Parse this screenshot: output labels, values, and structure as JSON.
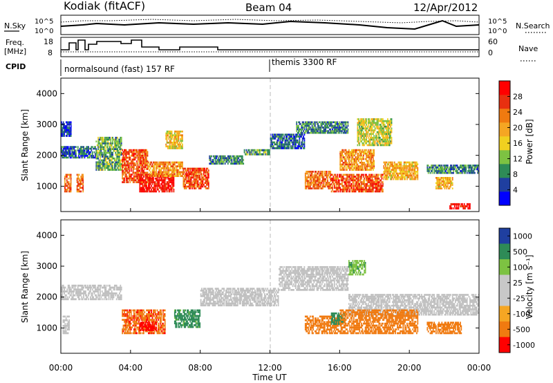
{
  "header": {
    "station": "Kodiak (fitACF)",
    "beam": "Beam 04",
    "date": "12/Apr/2012"
  },
  "strips": {
    "nsky_label": "N.Sky",
    "nsearch_label": "N.Search",
    "noise_ticks": [
      "10^5",
      "10^0"
    ],
    "freq_label": "Freq.",
    "freq_unit": "[MHz]",
    "freq_ticks": [
      "18",
      "8"
    ],
    "nave_label": "Nave",
    "nave_ticks": [
      "60",
      "0"
    ],
    "cpid_label": "CPID",
    "cpid_segments": [
      {
        "label": "normalsound (fast) 157 RF",
        "start": "00:00"
      },
      {
        "label": "themis 3300 RF",
        "start": "12:00"
      }
    ]
  },
  "colors": {
    "power_scale": [
      "#0000ff",
      "#1f3fa0",
      "#2e8b57",
      "#7dc242",
      "#f0d020",
      "#f5a623",
      "#f07a10",
      "#e83010",
      "#ff0000"
    ],
    "velocity_scale": [
      "#1f3fa0",
      "#2e8b57",
      "#7dc242",
      "#c8c8c8",
      "#c8c8c8",
      "#f5a623",
      "#f07a10",
      "#ff0000"
    ],
    "ground_scatter": "#c0c0c0"
  },
  "chart_data": [
    {
      "type": "heatmap",
      "panel": "power",
      "ylabel": "Slant Range [km]",
      "ylim": [
        180,
        4500
      ],
      "yticks": [
        "1000",
        "2000",
        "3000",
        "4000"
      ],
      "colorbar_label": "Power [dB]",
      "colorbar_ticks": [
        "4",
        "8",
        "12",
        "16",
        "20",
        "24",
        "28"
      ],
      "colorbar_range": [
        0,
        30
      ],
      "regions": [
        {
          "t_start": 0.0,
          "t_end": 2.0,
          "r_low": 1900,
          "r_high": 2300,
          "level": 6
        },
        {
          "t_start": 0.0,
          "t_end": 0.6,
          "r_low": 2600,
          "r_high": 3100,
          "level": 4
        },
        {
          "t_start": 0.2,
          "t_end": 0.6,
          "r_low": 800,
          "r_high": 1400,
          "level": 22
        },
        {
          "t_start": 0.9,
          "t_end": 1.3,
          "r_low": 800,
          "r_high": 1400,
          "level": 22
        },
        {
          "t_start": 2.0,
          "t_end": 3.5,
          "r_low": 1500,
          "r_high": 2600,
          "level": 10
        },
        {
          "t_start": 3.5,
          "t_end": 5.0,
          "r_low": 1100,
          "r_high": 2200,
          "level": 24
        },
        {
          "t_start": 4.5,
          "t_end": 6.5,
          "r_low": 800,
          "r_high": 1400,
          "level": 28
        },
        {
          "t_start": 5.0,
          "t_end": 7.0,
          "r_low": 1300,
          "r_high": 1800,
          "level": 20
        },
        {
          "t_start": 6.0,
          "t_end": 7.0,
          "r_low": 2200,
          "r_high": 2800,
          "level": 16
        },
        {
          "t_start": 7.0,
          "t_end": 8.5,
          "r_low": 900,
          "r_high": 1600,
          "level": 24
        },
        {
          "t_start": 8.5,
          "t_end": 10.5,
          "r_low": 1700,
          "r_high": 2000,
          "level": 8
        },
        {
          "t_start": 10.5,
          "t_end": 12.0,
          "r_low": 2000,
          "r_high": 2200,
          "level": 10
        },
        {
          "t_start": 12.0,
          "t_end": 14.0,
          "r_low": 2200,
          "r_high": 2700,
          "level": 6
        },
        {
          "t_start": 13.5,
          "t_end": 16.5,
          "r_low": 2700,
          "r_high": 3100,
          "level": 8
        },
        {
          "t_start": 14.0,
          "t_end": 15.5,
          "r_low": 900,
          "r_high": 1500,
          "level": 22
        },
        {
          "t_start": 15.5,
          "t_end": 18.5,
          "r_low": 800,
          "r_high": 1400,
          "level": 24
        },
        {
          "t_start": 16.0,
          "t_end": 18.0,
          "r_low": 1500,
          "r_high": 2200,
          "level": 20
        },
        {
          "t_start": 17.0,
          "t_end": 19.0,
          "r_low": 2300,
          "r_high": 3200,
          "level": 14
        },
        {
          "t_start": 18.5,
          "t_end": 20.5,
          "r_low": 1200,
          "r_high": 1800,
          "level": 18
        },
        {
          "t_start": 21.0,
          "t_end": 24.0,
          "r_low": 1400,
          "r_high": 1700,
          "level": 8
        },
        {
          "t_start": 21.5,
          "t_end": 22.5,
          "r_low": 900,
          "r_high": 1300,
          "level": 18
        },
        {
          "t_start": 22.3,
          "t_end": 23.5,
          "r_low": 250,
          "r_high": 450,
          "level": 28
        }
      ]
    },
    {
      "type": "heatmap",
      "panel": "velocity",
      "ylabel": "Slant Range [km]",
      "ylim": [
        180,
        4500
      ],
      "yticks": [
        "1000",
        "2000",
        "3000",
        "4000"
      ],
      "xticks": [
        "00:00",
        "04:00",
        "08:00",
        "12:00",
        "16:00",
        "20:00",
        "00:00"
      ],
      "xlabel": "Time UT",
      "colorbar_label": "Velocity [m s⁻¹]",
      "colorbar_ticks": [
        "1000",
        "500",
        "100",
        "25",
        "-25",
        "-100",
        "-500",
        "-1000"
      ],
      "colorbar_range": [
        -1000,
        1000
      ],
      "ground_scatter": [
        {
          "t_start": 0.0,
          "t_end": 3.5,
          "r_low": 1900,
          "r_high": 2400
        },
        {
          "t_start": 0.1,
          "t_end": 0.5,
          "r_low": 800,
          "r_high": 1400
        },
        {
          "t_start": 8.0,
          "t_end": 12.5,
          "r_low": 1700,
          "r_high": 2300
        },
        {
          "t_start": 12.5,
          "t_end": 16.5,
          "r_low": 2200,
          "r_high": 3000
        },
        {
          "t_start": 16.5,
          "t_end": 24.0,
          "r_low": 1400,
          "r_high": 2100
        }
      ],
      "regions": [
        {
          "t_start": 3.5,
          "t_end": 6.0,
          "r_low": 800,
          "r_high": 1600,
          "velocity": -400
        },
        {
          "t_start": 4.5,
          "t_end": 5.5,
          "r_low": 900,
          "r_high": 1200,
          "velocity": -900
        },
        {
          "t_start": 6.5,
          "t_end": 8.0,
          "r_low": 1000,
          "r_high": 1600,
          "velocity": 150
        },
        {
          "t_start": 14.0,
          "t_end": 16.0,
          "r_low": 800,
          "r_high": 1400,
          "velocity": -200
        },
        {
          "t_start": 15.5,
          "t_end": 16.3,
          "r_low": 1100,
          "r_high": 1500,
          "velocity": 300
        },
        {
          "t_start": 16.0,
          "t_end": 20.5,
          "r_low": 800,
          "r_high": 1600,
          "velocity": -300
        },
        {
          "t_start": 16.5,
          "t_end": 17.5,
          "r_low": 2700,
          "r_high": 3200,
          "velocity": 80
        },
        {
          "t_start": 21.0,
          "t_end": 23.0,
          "r_low": 800,
          "r_high": 1200,
          "velocity": -250
        }
      ]
    }
  ]
}
